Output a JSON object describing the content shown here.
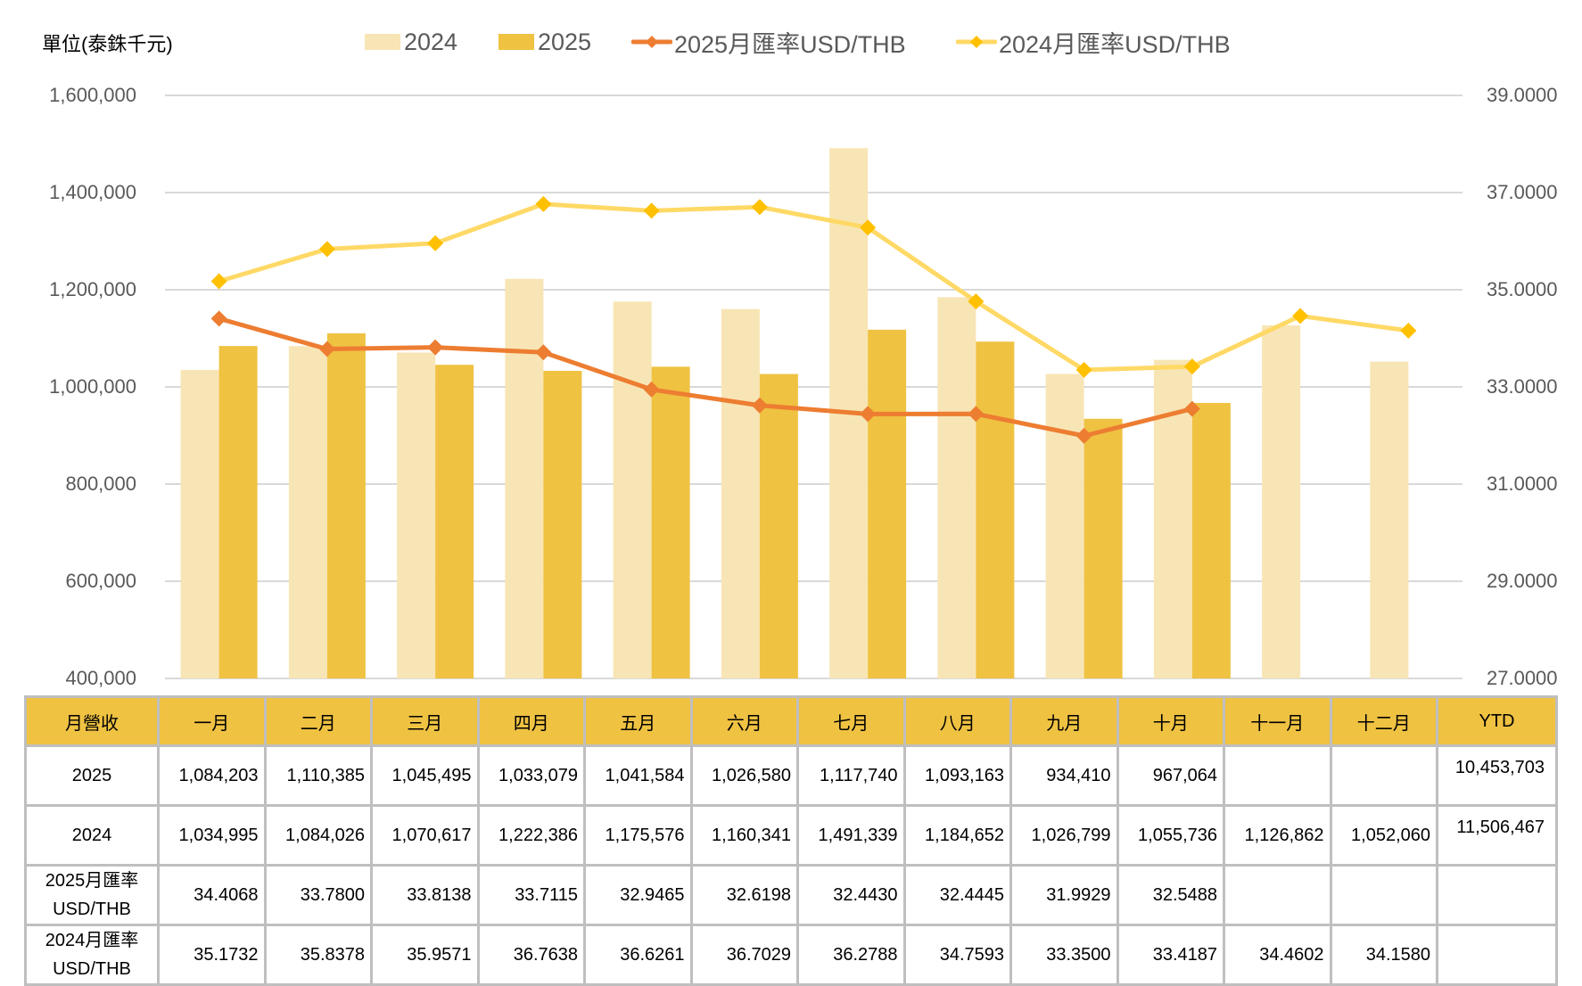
{
  "chart_data": {
    "type": "bar+line",
    "title": "",
    "unit_label": "單位(泰銖千元)",
    "categories": [
      "一月",
      "二月",
      "三月",
      "四月",
      "五月",
      "六月",
      "七月",
      "八月",
      "九月",
      "十月",
      "十一月",
      "十二月"
    ],
    "left_axis": {
      "label": "單位(泰銖千元)",
      "ylim": [
        400000,
        1600000
      ],
      "ticks": [
        400000,
        600000,
        800000,
        1000000,
        1200000,
        1400000,
        1600000
      ],
      "tick_labels": [
        "400,000",
        "600,000",
        "800,000",
        "1,000,000",
        "1,200,000",
        "1,400,000",
        "1,600,000"
      ]
    },
    "right_axis": {
      "ylim": [
        27,
        39
      ],
      "ticks": [
        27,
        29,
        31,
        33,
        35,
        37,
        39
      ],
      "tick_labels": [
        "27.0000",
        "29.0000",
        "31.0000",
        "33.0000",
        "35.0000",
        "37.0000",
        "39.0000"
      ]
    },
    "grid": true,
    "legend_position": "top",
    "series": [
      {
        "name": "2024",
        "type": "bar",
        "axis": "left",
        "color": "#f8e5b5",
        "values": [
          1034995,
          1084026,
          1070617,
          1222386,
          1175576,
          1160341,
          1491339,
          1184652,
          1026799,
          1055736,
          1126862,
          1052060
        ]
      },
      {
        "name": "2025",
        "type": "bar",
        "axis": "left",
        "color": "#efc242",
        "values": [
          1084203,
          1110385,
          1045495,
          1033079,
          1041584,
          1026580,
          1117740,
          1093163,
          934410,
          967064,
          null,
          null
        ]
      },
      {
        "name": "2025月匯率USD/THB",
        "type": "line",
        "axis": "right",
        "color": "#ed7d31",
        "marker_color": "#ed7d31",
        "values": [
          34.4068,
          33.78,
          33.8138,
          33.7115,
          32.9465,
          32.6198,
          32.443,
          32.4445,
          31.9929,
          32.5488,
          null,
          null
        ]
      },
      {
        "name": "2024月匯率USD/THB",
        "type": "line",
        "axis": "right",
        "color": "#ffd966",
        "marker_color": "#ffc000",
        "values": [
          35.1732,
          35.8378,
          35.9571,
          36.7638,
          36.6261,
          36.7029,
          36.2788,
          34.7593,
          33.35,
          33.4187,
          34.4602,
          34.158
        ]
      }
    ]
  },
  "table": {
    "header": [
      "月營收",
      "一月",
      "二月",
      "三月",
      "四月",
      "五月",
      "六月",
      "七月",
      "八月",
      "九月",
      "十月",
      "十一月",
      "十二月",
      "YTD"
    ],
    "rows": [
      {
        "label": "2025",
        "cells": [
          "1,084,203",
          "1,110,385",
          "1,045,495",
          "1,033,079",
          "1,041,584",
          "1,026,580",
          "1,117,740",
          "1,093,163",
          "934,410",
          "967,064",
          "",
          "",
          "10,453,703"
        ]
      },
      {
        "label": "2024",
        "cells": [
          "1,034,995",
          "1,084,026",
          "1,070,617",
          "1,222,386",
          "1,175,576",
          "1,160,341",
          "1,491,339",
          "1,184,652",
          "1,026,799",
          "1,055,736",
          "1,126,862",
          "1,052,060",
          "11,506,467"
        ]
      },
      {
        "label_line1": "2025月匯率",
        "label_line2": "USD/THB",
        "cells": [
          "34.4068",
          "33.7800",
          "33.8138",
          "33.7115",
          "32.9465",
          "32.6198",
          "32.4430",
          "32.4445",
          "31.9929",
          "32.5488",
          "",
          "",
          ""
        ]
      },
      {
        "label_line1": "2024月匯率",
        "label_line2": "USD/THB",
        "cells": [
          "35.1732",
          "35.8378",
          "35.9571",
          "36.7638",
          "36.6261",
          "36.7029",
          "36.2788",
          "34.7593",
          "33.3500",
          "33.4187",
          "34.4602",
          "34.1580",
          ""
        ]
      }
    ]
  }
}
